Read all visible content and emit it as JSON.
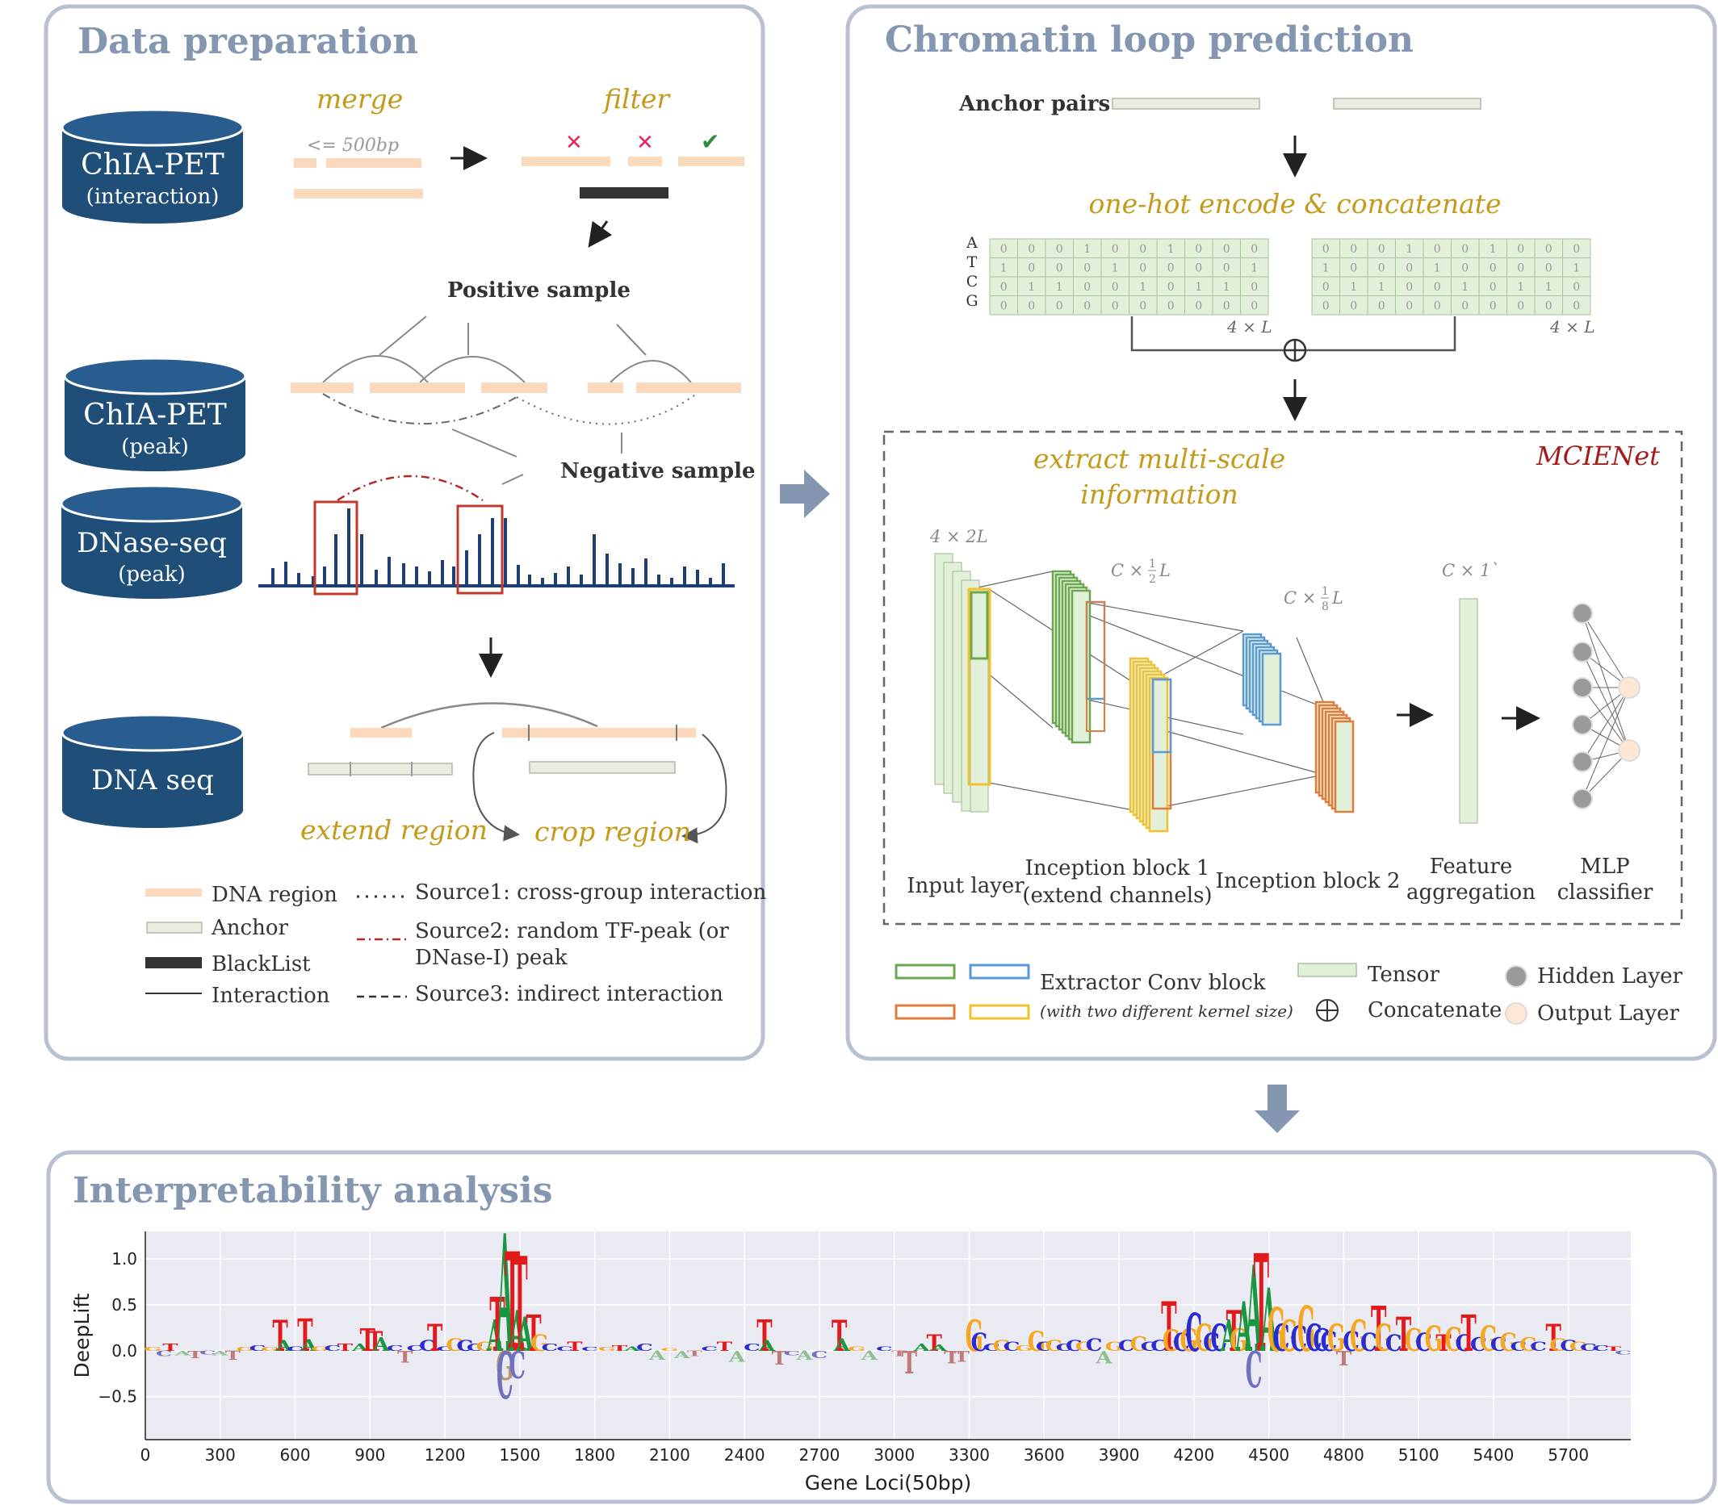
{
  "panels": {
    "data_prep": {
      "title": "Data preparation",
      "merge": "merge",
      "filter": "filter",
      "merge_note": "<= 500bp",
      "positive": "Positive sample",
      "negative": "Negative sample",
      "extend": "extend region",
      "crop": "crop region",
      "db1_name": "ChIA-PET",
      "db1_sub": "(interaction)",
      "db2_name": "ChIA-PET",
      "db2_sub": "(peak)",
      "db3_name": "DNase-seq",
      "db3_sub": "(peak)",
      "db4_name": "DNA seq",
      "legend": {
        "dna_region": "DNA region",
        "anchor": "Anchor",
        "blacklist": "BlackList",
        "interaction": "Interaction",
        "source1": "Source1: cross-group interaction",
        "source2a": "Source2: random TF-peak (or",
        "source2b": "DNase-I) peak",
        "source3": "Source3: indirect interaction"
      }
    },
    "loop_pred": {
      "title": "Chromatin loop prediction",
      "anchor_pairs": "Anchor pairs",
      "onehot": "one-hot encode & concatenate",
      "bases": [
        "A",
        "T",
        "C",
        "G"
      ],
      "matrix": [
        [
          "0",
          "0",
          "0",
          "1",
          "0",
          "0",
          "1",
          "0",
          "0",
          "0"
        ],
        [
          "1",
          "0",
          "0",
          "0",
          "1",
          "0",
          "0",
          "0",
          "0",
          "1"
        ],
        [
          "0",
          "1",
          "1",
          "0",
          "0",
          "1",
          "0",
          "1",
          "1",
          "0"
        ],
        [
          "0",
          "0",
          "0",
          "0",
          "0",
          "0",
          "0",
          "0",
          "0",
          "0"
        ]
      ],
      "dim_label": "4 × L",
      "model_name": "MCIENet",
      "extract_line1": "extract multi-scale",
      "extract_line2": "information",
      "dim_input": "4 × 2L",
      "dim_c_half_pre": "C ×",
      "dim_c_half_num": "1",
      "dim_c_half_den": "2",
      "dim_c_eighth_den": "8",
      "dim_suffix": "L",
      "dim_c1": "C × 1`",
      "input_layer": "Input layer",
      "inception1_a": "Inception block 1",
      "inception1_b": "(extend channels)",
      "inception2": "Inception block 2",
      "feature_a": "Feature",
      "feature_b": "aggregation",
      "mlp_a": "MLP",
      "mlp_b": "classifier",
      "legend": {
        "extractor": "Extractor Conv block",
        "extractor_note": "(with two different kernel size)",
        "tensor": "Tensor",
        "concatenate": "Concatenate",
        "hidden": "Hidden Layer",
        "output": "Output Layer"
      },
      "colors": {
        "green": "#6aa84f",
        "blue": "#5b9bd5",
        "orange": "#e07b39",
        "yellow": "#f2c12e"
      }
    },
    "interp": {
      "title": "Interpretability analysis"
    }
  },
  "chart_data": {
    "type": "sequence-logo",
    "xlabel": "Gene Loci(50bp)",
    "ylabel": "DeepLift",
    "xticks": [
      0,
      300,
      600,
      900,
      1200,
      1500,
      1800,
      2100,
      2400,
      2700,
      3000,
      3300,
      3600,
      3900,
      4200,
      4500,
      4800,
      5100,
      5400,
      5700
    ],
    "yticks": [
      -0.5,
      0.0,
      0.5,
      1.0
    ],
    "ytick_labels": [
      "−0.5",
      "0.0",
      "0.5",
      "1.0"
    ],
    "xlim": [
      0,
      5950
    ],
    "ylim": [
      -0.97,
      1.3
    ],
    "grid": true,
    "base_colors": {
      "A": "#1a9641",
      "C": "#2b2bd4",
      "G": "#f5a623",
      "T": "#e31a1c"
    },
    "negative_colors": {
      "A": "#8fbf8f",
      "C": "#7070c0",
      "G": "#b59a6a",
      "T": "#c07a7a"
    },
    "letters": [
      {
        "x": 30,
        "b": "G",
        "h": 0.04
      },
      {
        "x": 75,
        "b": "C",
        "h": -0.06
      },
      {
        "x": 100,
        "b": "T",
        "h": 0.08
      },
      {
        "x": 150,
        "b": "A",
        "h": -0.05
      },
      {
        "x": 200,
        "b": "T",
        "h": -0.08
      },
      {
        "x": 250,
        "b": "C",
        "h": -0.04
      },
      {
        "x": 300,
        "b": "A",
        "h": -0.05
      },
      {
        "x": 350,
        "b": "T",
        "h": -0.1
      },
      {
        "x": 400,
        "b": "G",
        "h": 0.04
      },
      {
        "x": 450,
        "b": "C",
        "h": 0.06
      },
      {
        "x": 500,
        "b": "G",
        "h": 0.04
      },
      {
        "x": 540,
        "b": "T",
        "h": 0.34
      },
      {
        "x": 555,
        "b": "A",
        "h": 0.12
      },
      {
        "x": 600,
        "b": "C",
        "h": 0.05
      },
      {
        "x": 640,
        "b": "T",
        "h": 0.36
      },
      {
        "x": 655,
        "b": "A",
        "h": 0.13
      },
      {
        "x": 700,
        "b": "G",
        "h": 0.05
      },
      {
        "x": 750,
        "b": "C",
        "h": 0.06
      },
      {
        "x": 800,
        "b": "T",
        "h": 0.08
      },
      {
        "x": 860,
        "b": "A",
        "h": 0.08
      },
      {
        "x": 890,
        "b": "T",
        "h": 0.25
      },
      {
        "x": 920,
        "b": "T",
        "h": 0.22
      },
      {
        "x": 945,
        "b": "A",
        "h": 0.15
      },
      {
        "x": 1000,
        "b": "C",
        "h": 0.06
      },
      {
        "x": 1040,
        "b": "T",
        "h": -0.13
      },
      {
        "x": 1080,
        "b": "C",
        "h": 0.06
      },
      {
        "x": 1130,
        "b": "C",
        "h": 0.12
      },
      {
        "x": 1160,
        "b": "T",
        "h": 0.3
      },
      {
        "x": 1200,
        "b": "C",
        "h": 0.05
      },
      {
        "x": 1240,
        "b": "G",
        "h": 0.14
      },
      {
        "x": 1280,
        "b": "C",
        "h": 0.12
      },
      {
        "x": 1320,
        "b": "C",
        "h": 0.08
      },
      {
        "x": 1360,
        "b": "G",
        "h": 0.1
      },
      {
        "x": 1400,
        "b": "A",
        "h": 0.35
      },
      {
        "x": 1410,
        "b": "T",
        "h": 0.6
      },
      {
        "x": 1440,
        "b": "A",
        "h": 1.3
      },
      {
        "x": 1440,
        "b": "G",
        "h": -0.32
      },
      {
        "x": 1440,
        "b": "C",
        "h": -0.52
      },
      {
        "x": 1470,
        "b": "T",
        "h": 1.1
      },
      {
        "x": 1490,
        "b": "A",
        "h": 0.45
      },
      {
        "x": 1490,
        "b": "C",
        "h": -0.3
      },
      {
        "x": 1500,
        "b": "T",
        "h": 1.05
      },
      {
        "x": 1520,
        "b": "A",
        "h": 0.38
      },
      {
        "x": 1555,
        "b": "T",
        "h": 0.4
      },
      {
        "x": 1580,
        "b": "G",
        "h": 0.18
      },
      {
        "x": 1620,
        "b": "C",
        "h": 0.08
      },
      {
        "x": 1680,
        "b": "C",
        "h": 0.05
      },
      {
        "x": 1720,
        "b": "T",
        "h": 0.1
      },
      {
        "x": 1780,
        "b": "C",
        "h": 0.04
      },
      {
        "x": 1850,
        "b": "G",
        "h": 0.04
      },
      {
        "x": 1900,
        "b": "T",
        "h": 0.06
      },
      {
        "x": 1950,
        "b": "A",
        "h": 0.05
      },
      {
        "x": 2000,
        "b": "C",
        "h": 0.08
      },
      {
        "x": 2050,
        "b": "A",
        "h": -0.1
      },
      {
        "x": 2100,
        "b": "G",
        "h": 0.03
      },
      {
        "x": 2150,
        "b": "A",
        "h": -0.08
      },
      {
        "x": 2200,
        "b": "T",
        "h": -0.06
      },
      {
        "x": 2260,
        "b": "C",
        "h": 0.05
      },
      {
        "x": 2320,
        "b": "T",
        "h": 0.1
      },
      {
        "x": 2370,
        "b": "A",
        "h": -0.12
      },
      {
        "x": 2430,
        "b": "C",
        "h": 0.08
      },
      {
        "x": 2480,
        "b": "T",
        "h": 0.35
      },
      {
        "x": 2490,
        "b": "A",
        "h": 0.12
      },
      {
        "x": 2540,
        "b": "T",
        "h": -0.15
      },
      {
        "x": 2590,
        "b": "C",
        "h": -0.05
      },
      {
        "x": 2640,
        "b": "A",
        "h": -0.1
      },
      {
        "x": 2700,
        "b": "C",
        "h": -0.08
      },
      {
        "x": 2780,
        "b": "T",
        "h": 0.34
      },
      {
        "x": 2790,
        "b": "A",
        "h": 0.14
      },
      {
        "x": 2850,
        "b": "G",
        "h": 0.05
      },
      {
        "x": 2900,
        "b": "A",
        "h": -0.1
      },
      {
        "x": 2960,
        "b": "C",
        "h": 0.05
      },
      {
        "x": 3020,
        "b": "T",
        "h": -0.06
      },
      {
        "x": 3060,
        "b": "T",
        "h": -0.25
      },
      {
        "x": 3110,
        "b": "A",
        "h": 0.08
      },
      {
        "x": 3160,
        "b": "T",
        "h": 0.18
      },
      {
        "x": 3180,
        "b": "A",
        "h": 0.07
      },
      {
        "x": 3230,
        "b": "T",
        "h": -0.14
      },
      {
        "x": 3270,
        "b": "T",
        "h": -0.12
      },
      {
        "x": 3320,
        "b": "G",
        "h": 0.35
      },
      {
        "x": 3340,
        "b": "C",
        "h": 0.2
      },
      {
        "x": 3390,
        "b": "C",
        "h": 0.08
      },
      {
        "x": 3430,
        "b": "G",
        "h": 0.12
      },
      {
        "x": 3470,
        "b": "C",
        "h": 0.1
      },
      {
        "x": 3520,
        "b": "G",
        "h": 0.06
      },
      {
        "x": 3570,
        "b": "G",
        "h": 0.22
      },
      {
        "x": 3600,
        "b": "C",
        "h": 0.1
      },
      {
        "x": 3640,
        "b": "G",
        "h": 0.12
      },
      {
        "x": 3680,
        "b": "C",
        "h": 0.08
      },
      {
        "x": 3720,
        "b": "C",
        "h": 0.12
      },
      {
        "x": 3760,
        "b": "G",
        "h": 0.1
      },
      {
        "x": 3800,
        "b": "C",
        "h": 0.14
      },
      {
        "x": 3840,
        "b": "A",
        "h": -0.14
      },
      {
        "x": 3880,
        "b": "G",
        "h": 0.1
      },
      {
        "x": 3930,
        "b": "C",
        "h": 0.12
      },
      {
        "x": 3980,
        "b": "G",
        "h": 0.16
      },
      {
        "x": 4020,
        "b": "C",
        "h": 0.1
      },
      {
        "x": 4060,
        "b": "C",
        "h": 0.12
      },
      {
        "x": 4100,
        "b": "T",
        "h": 0.55
      },
      {
        "x": 4110,
        "b": "G",
        "h": 0.24
      },
      {
        "x": 4150,
        "b": "C",
        "h": 0.2
      },
      {
        "x": 4180,
        "b": "G",
        "h": 0.25
      },
      {
        "x": 4200,
        "b": "C",
        "h": 0.42
      },
      {
        "x": 4240,
        "b": "G",
        "h": 0.3
      },
      {
        "x": 4270,
        "b": "C",
        "h": 0.2
      },
      {
        "x": 4300,
        "b": "C",
        "h": 0.3
      },
      {
        "x": 4340,
        "b": "A",
        "h": 0.35
      },
      {
        "x": 4360,
        "b": "T",
        "h": 0.45
      },
      {
        "x": 4380,
        "b": "G",
        "h": 0.25
      },
      {
        "x": 4400,
        "b": "A",
        "h": 0.55
      },
      {
        "x": 4440,
        "b": "A",
        "h": 0.95
      },
      {
        "x": 4440,
        "b": "C",
        "h": -0.4
      },
      {
        "x": 4470,
        "b": "T",
        "h": 1.08
      },
      {
        "x": 4500,
        "b": "A",
        "h": 0.7
      },
      {
        "x": 4530,
        "b": "G",
        "h": 0.48
      },
      {
        "x": 4550,
        "b": "C",
        "h": 0.3
      },
      {
        "x": 4580,
        "b": "G",
        "h": 0.35
      },
      {
        "x": 4620,
        "b": "C",
        "h": 0.28
      },
      {
        "x": 4650,
        "b": "G",
        "h": 0.5
      },
      {
        "x": 4680,
        "b": "C",
        "h": 0.3
      },
      {
        "x": 4710,
        "b": "C",
        "h": 0.25
      },
      {
        "x": 4740,
        "b": "C",
        "h": 0.22
      },
      {
        "x": 4770,
        "b": "G",
        "h": 0.3
      },
      {
        "x": 4800,
        "b": "T",
        "h": -0.16
      },
      {
        "x": 4830,
        "b": "C",
        "h": 0.22
      },
      {
        "x": 4860,
        "b": "G",
        "h": 0.35
      },
      {
        "x": 4900,
        "b": "C",
        "h": 0.2
      },
      {
        "x": 4940,
        "b": "T",
        "h": 0.5
      },
      {
        "x": 4960,
        "b": "G",
        "h": 0.3
      },
      {
        "x": 5000,
        "b": "C",
        "h": 0.18
      },
      {
        "x": 5040,
        "b": "T",
        "h": 0.38
      },
      {
        "x": 5080,
        "b": "G",
        "h": 0.25
      },
      {
        "x": 5120,
        "b": "C",
        "h": 0.2
      },
      {
        "x": 5160,
        "b": "G",
        "h": 0.28
      },
      {
        "x": 5200,
        "b": "T",
        "h": 0.18
      },
      {
        "x": 5240,
        "b": "G",
        "h": 0.26
      },
      {
        "x": 5280,
        "b": "C",
        "h": 0.18
      },
      {
        "x": 5300,
        "b": "T",
        "h": 0.4
      },
      {
        "x": 5340,
        "b": "C",
        "h": 0.15
      },
      {
        "x": 5380,
        "b": "G",
        "h": 0.28
      },
      {
        "x": 5420,
        "b": "C",
        "h": 0.15
      },
      {
        "x": 5460,
        "b": "G",
        "h": 0.2
      },
      {
        "x": 5500,
        "b": "C",
        "h": 0.1
      },
      {
        "x": 5540,
        "b": "G",
        "h": 0.15
      },
      {
        "x": 5580,
        "b": "C",
        "h": 0.1
      },
      {
        "x": 5640,
        "b": "T",
        "h": 0.3
      },
      {
        "x": 5660,
        "b": "G",
        "h": 0.14
      },
      {
        "x": 5700,
        "b": "C",
        "h": 0.12
      },
      {
        "x": 5740,
        "b": "G",
        "h": 0.1
      },
      {
        "x": 5780,
        "b": "C",
        "h": 0.08
      },
      {
        "x": 5830,
        "b": "C",
        "h": 0.06
      },
      {
        "x": 5880,
        "b": "T",
        "h": 0.05
      },
      {
        "x": 5920,
        "b": "C",
        "h": -0.04
      }
    ]
  }
}
